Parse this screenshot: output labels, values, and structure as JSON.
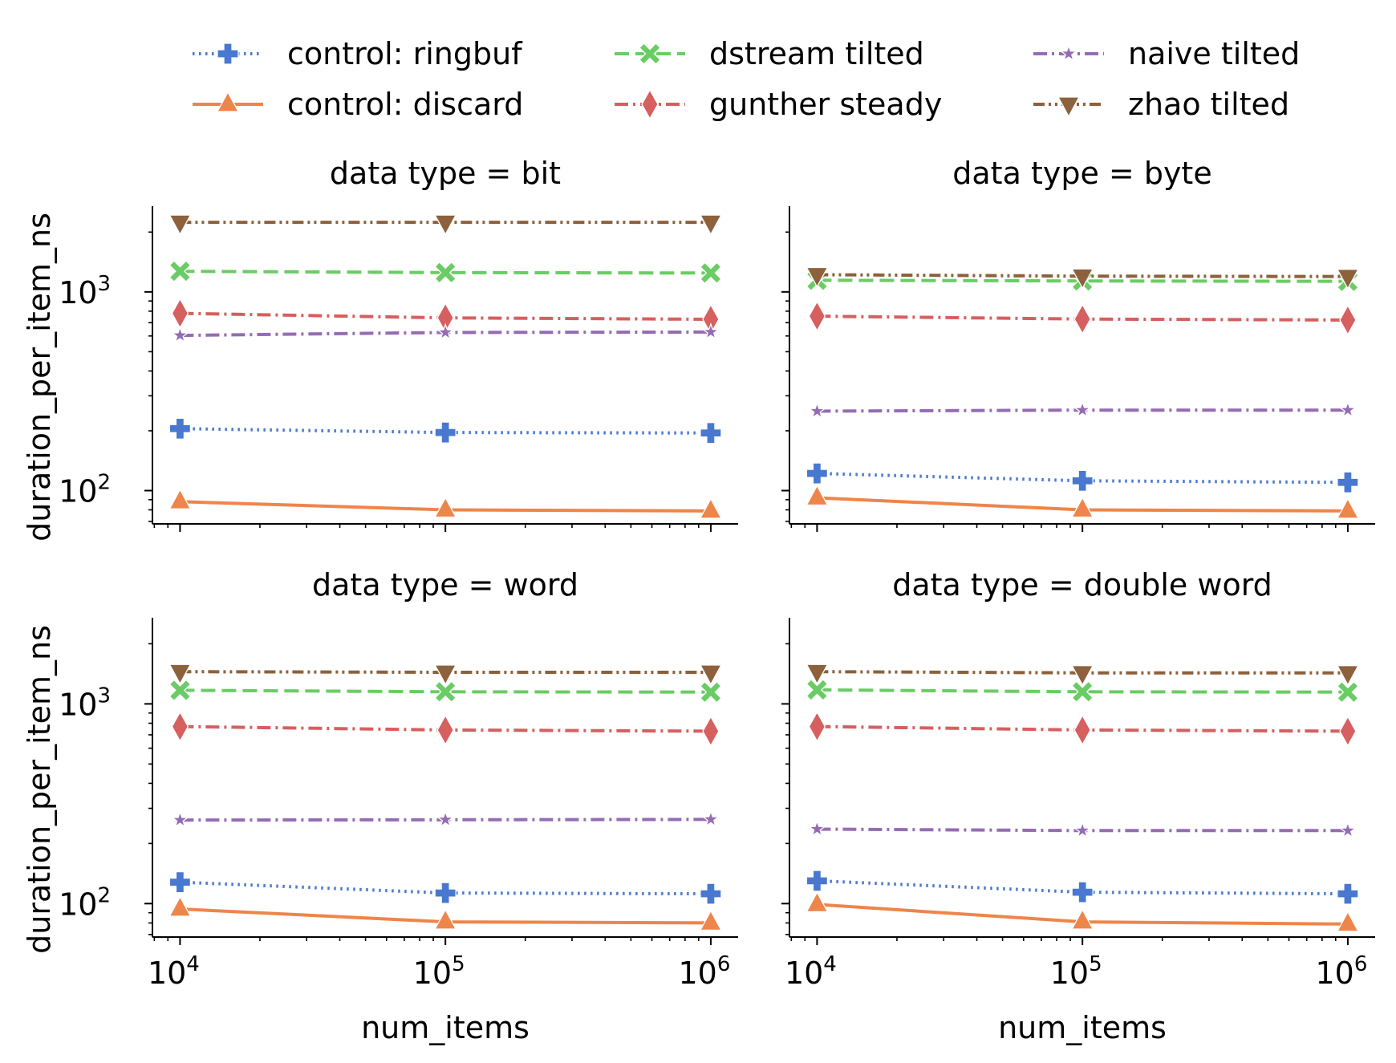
{
  "figure": {
    "legend": [
      {
        "name": "control: ringbuf",
        "color": "#4878d0",
        "dash": "dotted",
        "marker": "plus-filled"
      },
      {
        "name": "control: discard",
        "color": "#ee854a",
        "dash": "solid",
        "marker": "triangle-up"
      },
      {
        "name": "dstream tilted",
        "color": "#6acc64",
        "dash": "dashed",
        "marker": "x-filled"
      },
      {
        "name": "gunther steady",
        "color": "#d65f5f",
        "dash": "dashdot",
        "marker": "thin-diamond"
      },
      {
        "name": "naive tilted",
        "color": "#956cb4",
        "dash": "dashdot",
        "marker": "star"
      },
      {
        "name": "zhao tilted",
        "color": "#8c613c",
        "dash": "dashdotdot",
        "marker": "triangle-down"
      }
    ]
  },
  "chart_data": [
    {
      "type": "line",
      "title": "data type = bit",
      "xlabel": "",
      "ylabel": "duration_per_item_ns",
      "xscale": "log",
      "yscale": "log",
      "x": [
        10000,
        100000,
        1000000
      ],
      "ylim": [
        68,
        2700
      ],
      "xticklabels": [],
      "yticklabels": [
        {
          "base": "10",
          "exp": "3",
          "value": 1000
        },
        {
          "base": "10",
          "exp": "2",
          "value": 100
        }
      ],
      "series": [
        {
          "name": "control: ringbuf",
          "values": [
            205,
            196,
            195
          ]
        },
        {
          "name": "control: discard",
          "values": [
            88,
            80,
            79
          ]
        },
        {
          "name": "dstream tilted",
          "values": [
            1270,
            1250,
            1245
          ]
        },
        {
          "name": "gunther steady",
          "values": [
            780,
            740,
            728
          ]
        },
        {
          "name": "naive tilted",
          "values": [
            604,
            625,
            628
          ]
        },
        {
          "name": "zhao tilted",
          "values": [
            2240,
            2240,
            2240
          ]
        }
      ]
    },
    {
      "type": "line",
      "title": "data type = byte",
      "xlabel": "",
      "ylabel": "",
      "xscale": "log",
      "yscale": "log",
      "x": [
        10000,
        100000,
        1000000
      ],
      "ylim": [
        68,
        2700
      ],
      "xticklabels": [],
      "yticklabels": [],
      "series": [
        {
          "name": "control: ringbuf",
          "values": [
            122,
            112,
            110
          ]
        },
        {
          "name": "control: discard",
          "values": [
            92,
            80,
            79
          ]
        },
        {
          "name": "dstream tilted",
          "values": [
            1145,
            1135,
            1130
          ]
        },
        {
          "name": "gunther steady",
          "values": [
            755,
            730,
            722
          ]
        },
        {
          "name": "naive tilted",
          "values": [
            251,
            254,
            254
          ]
        },
        {
          "name": "zhao tilted",
          "values": [
            1220,
            1200,
            1195
          ]
        }
      ]
    },
    {
      "type": "line",
      "title": "data type = word",
      "xlabel": "num_items",
      "ylabel": "duration_per_item_ns",
      "xscale": "log",
      "yscale": "log",
      "x": [
        10000,
        100000,
        1000000
      ],
      "ylim": [
        68,
        2700
      ],
      "xticklabels": [
        {
          "base": "10",
          "exp": "4",
          "value": 10000
        },
        {
          "base": "10",
          "exp": "5",
          "value": 100000
        },
        {
          "base": "10",
          "exp": "6",
          "value": 1000000
        }
      ],
      "yticklabels": [
        {
          "base": "10",
          "exp": "3",
          "value": 1000
        },
        {
          "base": "10",
          "exp": "2",
          "value": 100
        }
      ],
      "series": [
        {
          "name": "control: ringbuf",
          "values": [
            128,
            113,
            112
          ]
        },
        {
          "name": "control: discard",
          "values": [
            94,
            81,
            80
          ]
        },
        {
          "name": "dstream tilted",
          "values": [
            1170,
            1150,
            1145
          ]
        },
        {
          "name": "gunther steady",
          "values": [
            770,
            740,
            730
          ]
        },
        {
          "name": "naive tilted",
          "values": [
            262,
            263,
            264
          ]
        },
        {
          "name": "zhao tilted",
          "values": [
            1450,
            1440,
            1440
          ]
        }
      ]
    },
    {
      "type": "line",
      "title": "data type = double word",
      "xlabel": "num_items",
      "ylabel": "",
      "xscale": "log",
      "yscale": "log",
      "x": [
        10000,
        100000,
        1000000
      ],
      "ylim": [
        68,
        2700
      ],
      "xticklabels": [
        {
          "base": "10",
          "exp": "4",
          "value": 10000
        },
        {
          "base": "10",
          "exp": "5",
          "value": 100000
        },
        {
          "base": "10",
          "exp": "6",
          "value": 1000000
        }
      ],
      "yticklabels": [],
      "series": [
        {
          "name": "control: ringbuf",
          "values": [
            130,
            114,
            112
          ]
        },
        {
          "name": "control: discard",
          "values": [
            99,
            81,
            79
          ]
        },
        {
          "name": "dstream tilted",
          "values": [
            1175,
            1150,
            1145
          ]
        },
        {
          "name": "gunther steady",
          "values": [
            770,
            740,
            730
          ]
        },
        {
          "name": "naive tilted",
          "values": [
            236,
            232,
            232
          ]
        },
        {
          "name": "zhao tilted",
          "values": [
            1450,
            1430,
            1430
          ]
        }
      ]
    }
  ]
}
